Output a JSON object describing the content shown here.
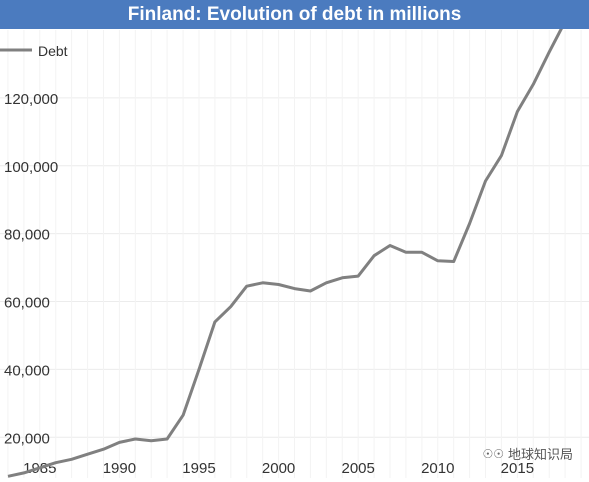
{
  "chart_data": {
    "type": "line",
    "title": "Finland: Evolution of debt in millions",
    "xlabel": "",
    "ylabel": "",
    "xlim": [
      1982.5,
      2019.5
    ],
    "ylim": [
      8000,
      140000
    ],
    "x_ticks": [
      1985,
      1990,
      1995,
      2000,
      2005,
      2010,
      2015
    ],
    "y_ticks": [
      20000,
      40000,
      60000,
      80000,
      100000,
      120000
    ],
    "y_tick_labels": [
      "20,000",
      "40,000",
      "60,000",
      "80,000",
      "100,000",
      "120,000"
    ],
    "x_tick_labels": [
      "1985",
      "1990",
      "1995",
      "2000",
      "2005",
      "2010",
      "2015"
    ],
    "grid": true,
    "legend": "top-left",
    "color": "#808080",
    "series": [
      {
        "name": "Debt",
        "x": [
          1983,
          1984,
          1985,
          1986,
          1987,
          1988,
          1989,
          1990,
          1991,
          1992,
          1993,
          1994,
          1995,
          1996,
          1997,
          1998,
          1999,
          2000,
          2001,
          2002,
          2003,
          2004,
          2005,
          2006,
          2007,
          2008,
          2009,
          2010,
          2011,
          2012,
          2013,
          2014,
          2015,
          2016,
          2017,
          2018,
          2019
        ],
        "values": [
          8500,
          9500,
          11000,
          12500,
          13500,
          15000,
          16500,
          18500,
          19500,
          19000,
          19500,
          26500,
          40000,
          54000,
          58500,
          64500,
          65500,
          65000,
          63800,
          63100,
          65500,
          67000,
          67500,
          73500,
          76500,
          74500,
          74500,
          72000,
          71800,
          83000,
          95500,
          103000,
          116000,
          124000,
          133500,
          142500,
          145500
        ]
      }
    ]
  },
  "watermark": {
    "icon": "wechat-icon",
    "text": "地球知识局"
  }
}
